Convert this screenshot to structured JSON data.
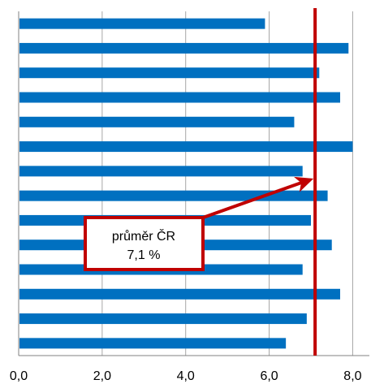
{
  "chart_data": {
    "type": "bar",
    "orientation": "horizontal",
    "values": [
      5.9,
      7.9,
      7.2,
      7.7,
      6.6,
      8.0,
      6.8,
      7.4,
      7.0,
      7.5,
      6.8,
      7.7,
      6.9,
      6.4
    ],
    "xlim": [
      0,
      8.4
    ],
    "xticks": [
      "0,0",
      "2,0",
      "4,0",
      "6,0",
      "8,0"
    ],
    "xtick_values": [
      0,
      2,
      4,
      6,
      8
    ],
    "grid": true,
    "bar_color": "#0070C0",
    "reference_line": {
      "value": 7.1,
      "color": "#C00000"
    },
    "annotation": {
      "line1": "průměr ČR",
      "line2": "7,1 %",
      "border_color": "#C00000",
      "arrow_color": "#C00000"
    }
  }
}
